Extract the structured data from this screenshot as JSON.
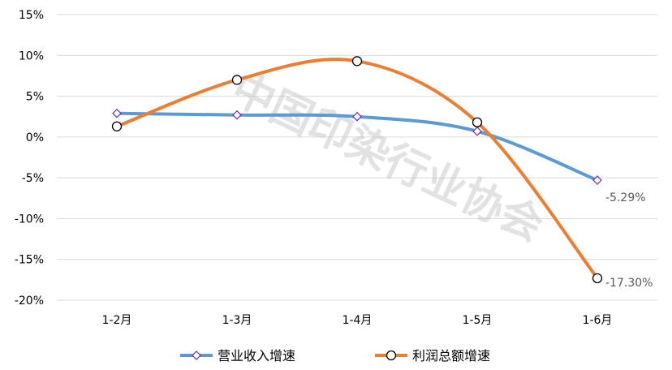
{
  "watermark": "中国印染行业协会",
  "colors": {
    "revenue": "#5b9bd5",
    "profit": "#ed7d31",
    "grid": "#d9d9d9",
    "revenue_marker": "#7030a0"
  },
  "chart_data": {
    "type": "line",
    "categories": [
      "1-2月",
      "1-3月",
      "1-4月",
      "1-5月",
      "1-6月"
    ],
    "ylim": [
      -20,
      15
    ],
    "yticks": [
      "-20%",
      "-15%",
      "-10%",
      "-5%",
      "0%",
      "5%",
      "10%",
      "15%"
    ],
    "grid": true,
    "legend_position": "bottom",
    "series": [
      {
        "name": "营业收入增速",
        "values": [
          2.9,
          2.7,
          2.5,
          0.7,
          -5.29
        ],
        "marker": "diamond",
        "data_labels": [
          "",
          "",
          "",
          "",
          "-5.29%"
        ]
      },
      {
        "name": "利润总额增速",
        "values": [
          1.3,
          7.0,
          9.3,
          1.8,
          -17.3
        ],
        "marker": "circle",
        "data_labels": [
          "",
          "",
          "",
          "",
          "-17.30%"
        ]
      }
    ]
  }
}
